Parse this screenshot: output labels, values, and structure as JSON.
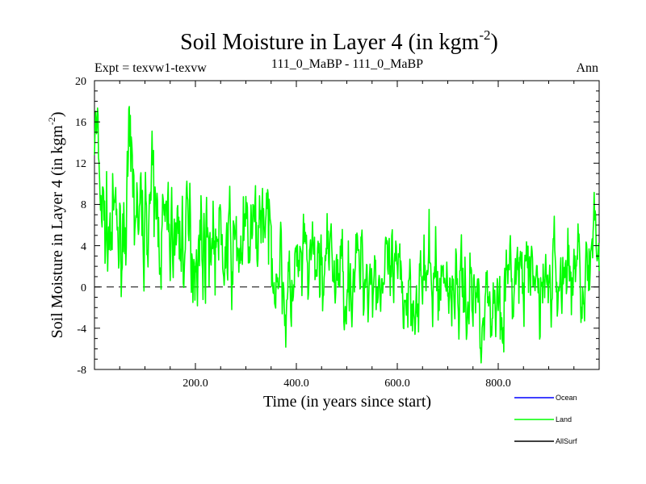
{
  "chart_data": {
    "type": "line",
    "title": "Soil Moisture in Layer 4 (in kgm",
    "title_sup": "-2",
    "title_close": ")",
    "subtitle_left": "Expt = texvw1-texvw",
    "subtitle_center": "111_0_MaBP - 111_0_MaBP",
    "subtitle_right": "Ann",
    "xlabel": "Time (in years since start)",
    "ylabel": "Soil Moisture in Layer 4 (in kgm",
    "ylabel_sup": "-2",
    "ylabel_close": ")",
    "xlim": [
      0,
      1000
    ],
    "ylim": [
      -8,
      20
    ],
    "xticks": [
      200,
      400,
      600,
      800
    ],
    "xtick_labels": [
      "200.0",
      "400.0",
      "600.0",
      "800.0"
    ],
    "yticks": [
      -8,
      -4,
      0,
      4,
      8,
      12,
      16,
      20
    ],
    "ytick_labels": [
      "-8",
      "-4",
      "0",
      "4",
      "8",
      "12",
      "16",
      "20"
    ],
    "reference_line": 0,
    "legend": [
      {
        "name": "Ocean",
        "color": "#0000ff"
      },
      {
        "name": "Land",
        "color": "#00ff00"
      },
      {
        "name": "AllSurf",
        "color": "#000000"
      }
    ],
    "series": [
      {
        "name": "Land",
        "color": "#00ff00",
        "anchors_x": [
          0,
          5,
          10,
          20,
          30,
          40,
          50,
          60,
          70,
          80,
          90,
          100,
          110,
          120,
          130,
          150,
          170,
          200,
          230,
          260,
          290,
          320,
          335,
          350,
          370,
          380,
          400,
          430,
          460,
          500,
          530,
          560,
          600,
          640,
          680,
          720,
          760,
          780,
          800,
          840,
          880,
          920,
          960,
          980,
          990,
          1000
        ],
        "anchors_y": [
          15,
          14,
          10,
          6,
          5,
          6,
          4,
          7,
          11,
          8,
          6,
          6,
          9,
          7,
          6,
          5,
          5,
          4,
          5,
          3,
          4,
          5,
          8,
          3,
          2,
          -2,
          1,
          2,
          2,
          1,
          2,
          1,
          0,
          0,
          1,
          0,
          -1,
          -2,
          -1,
          1,
          0,
          1,
          2,
          1,
          3,
          3
        ],
        "amplitude_x": [
          0,
          300,
          370,
          1000
        ],
        "amplitude_y": [
          3.0,
          2.8,
          2.6,
          2.6
        ],
        "seed": 7
      }
    ]
  }
}
